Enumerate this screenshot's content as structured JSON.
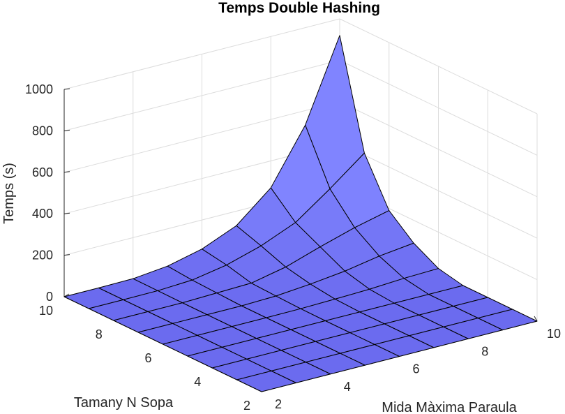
{
  "chart_data": {
    "type": "surface",
    "title": "Temps Double Hashing",
    "xlabel": "Mida Màxima Paraula",
    "ylabel": "Tamany N Sopa",
    "zlabel": "Temps (s)",
    "x": [
      2,
      3,
      4,
      5,
      6,
      7,
      8,
      9,
      10
    ],
    "y": [
      2,
      3,
      4,
      5,
      6,
      7,
      8,
      9,
      10
    ],
    "xlim": [
      2,
      10
    ],
    "ylim": [
      2,
      10
    ],
    "zlim": [
      0,
      1000
    ],
    "x_ticks": [
      "2",
      "4",
      "6",
      "8",
      "10"
    ],
    "y_ticks": [
      "2",
      "4",
      "6",
      "8",
      "10"
    ],
    "z_ticks": [
      "0",
      "200",
      "400",
      "600",
      "800",
      "1000"
    ],
    "z_note": "rows indexed by Tamany N Sopa (2..10), columns by Mida Màxima Paraula (2..10)",
    "z": [
      [
        0,
        0,
        0,
        0,
        0,
        0,
        0,
        0,
        0
      ],
      [
        0,
        0,
        0,
        0,
        0,
        0,
        0,
        0,
        0
      ],
      [
        0,
        0,
        0,
        0,
        0,
        0,
        0,
        0,
        0
      ],
      [
        0,
        0,
        0,
        0,
        0,
        0,
        0,
        0,
        0
      ],
      [
        0,
        0,
        0,
        0,
        1,
        5,
        10,
        20,
        25
      ],
      [
        0,
        0,
        0,
        0,
        5,
        20,
        40,
        70,
        90
      ],
      [
        0,
        0,
        0,
        5,
        10,
        45,
        100,
        150,
        190
      ],
      [
        0,
        0,
        1,
        10,
        40,
        90,
        160,
        280,
        410
      ],
      [
        0,
        0,
        2,
        20,
        60,
        130,
        270,
        530,
        920
      ]
    ],
    "surface_color": "#6b6bef",
    "grid": true
  }
}
